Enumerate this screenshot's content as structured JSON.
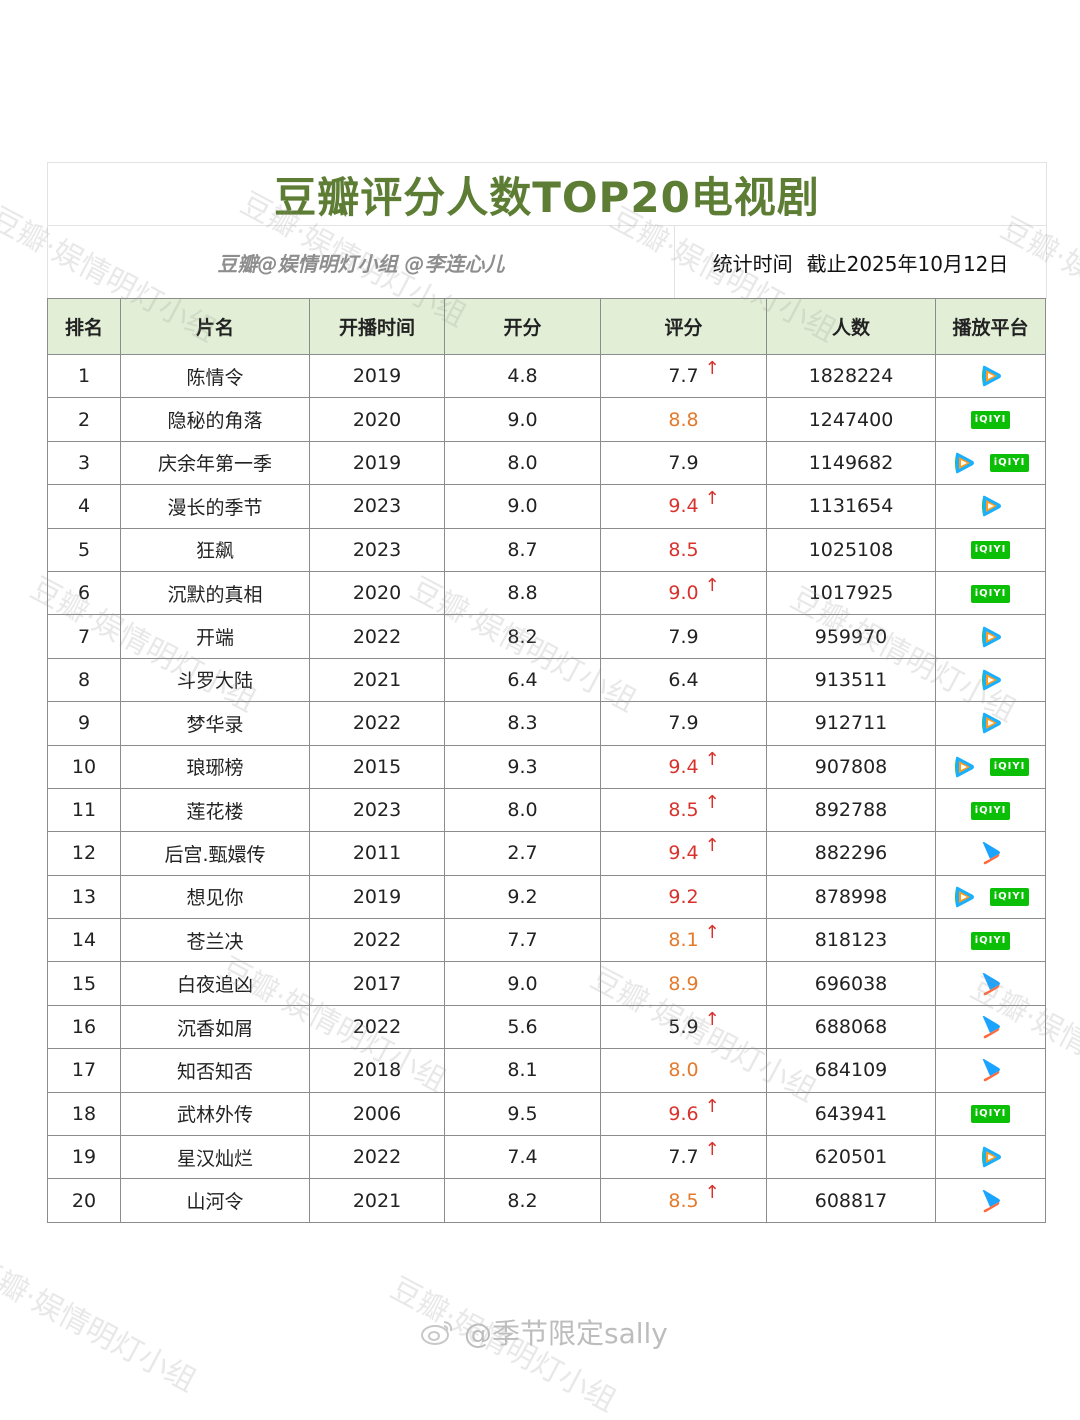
{
  "title": "豆瓣评分人数TOP20电视剧",
  "credit": "豆瓣@娱情明灯小组 @李连心儿",
  "stat_label": "统计时间",
  "stat_date": "截止2025年10月12日",
  "headers": [
    "排名",
    "片名",
    "开播时间",
    "开分",
    "评分",
    "人数",
    "播放平台"
  ],
  "rows": [
    {
      "rank": "1",
      "name": "陈情令",
      "year": "2019",
      "open": "4.8",
      "score": "7.7",
      "color": "black",
      "up": true,
      "count": "1828224",
      "platforms": [
        "tencent"
      ]
    },
    {
      "rank": "2",
      "name": "隐秘的角落",
      "year": "2020",
      "open": "9.0",
      "score": "8.8",
      "color": "orange",
      "up": false,
      "count": "1247400",
      "platforms": [
        "iqiyi"
      ]
    },
    {
      "rank": "3",
      "name": "庆余年第一季",
      "year": "2019",
      "open": "8.0",
      "score": "7.9",
      "color": "black",
      "up": false,
      "count": "1149682",
      "platforms": [
        "tencent",
        "iqiyi"
      ]
    },
    {
      "rank": "4",
      "name": "漫长的季节",
      "year": "2023",
      "open": "9.0",
      "score": "9.4",
      "color": "red",
      "up": true,
      "count": "1131654",
      "platforms": [
        "tencent"
      ]
    },
    {
      "rank": "5",
      "name": "狂飙",
      "year": "2023",
      "open": "8.7",
      "score": "8.5",
      "color": "red",
      "up": false,
      "count": "1025108",
      "platforms": [
        "iqiyi"
      ]
    },
    {
      "rank": "6",
      "name": "沉默的真相",
      "year": "2020",
      "open": "8.8",
      "score": "9.0",
      "color": "red",
      "up": true,
      "count": "1017925",
      "platforms": [
        "iqiyi"
      ]
    },
    {
      "rank": "7",
      "name": "开端",
      "year": "2022",
      "open": "8.2",
      "score": "7.9",
      "color": "black",
      "up": false,
      "count": "959970",
      "platforms": [
        "tencent"
      ]
    },
    {
      "rank": "8",
      "name": "斗罗大陆",
      "year": "2021",
      "open": "6.4",
      "score": "6.4",
      "color": "black",
      "up": false,
      "count": "913511",
      "platforms": [
        "tencent"
      ]
    },
    {
      "rank": "9",
      "name": "梦华录",
      "year": "2022",
      "open": "8.3",
      "score": "7.9",
      "color": "black",
      "up": false,
      "count": "912711",
      "platforms": [
        "tencent"
      ]
    },
    {
      "rank": "10",
      "name": "琅琊榜",
      "year": "2015",
      "open": "9.3",
      "score": "9.4",
      "color": "red",
      "up": true,
      "count": "907808",
      "platforms": [
        "tencent",
        "iqiyi"
      ]
    },
    {
      "rank": "11",
      "name": "莲花楼",
      "year": "2023",
      "open": "8.0",
      "score": "8.5",
      "color": "red",
      "up": true,
      "count": "892788",
      "platforms": [
        "iqiyi"
      ]
    },
    {
      "rank": "12",
      "name": "后宫.甄嬛传",
      "year": "2011",
      "open": "2.7",
      "score": "9.4",
      "color": "red",
      "up": true,
      "count": "882296",
      "platforms": [
        "youku"
      ]
    },
    {
      "rank": "13",
      "name": "想见你",
      "year": "2019",
      "open": "9.2",
      "score": "9.2",
      "color": "red",
      "up": false,
      "count": "878998",
      "platforms": [
        "tencent",
        "iqiyi"
      ]
    },
    {
      "rank": "14",
      "name": "苍兰决",
      "year": "2022",
      "open": "7.7",
      "score": "8.1",
      "color": "orange",
      "up": true,
      "count": "818123",
      "platforms": [
        "iqiyi"
      ]
    },
    {
      "rank": "15",
      "name": "白夜追凶",
      "year": "2017",
      "open": "9.0",
      "score": "8.9",
      "color": "orange",
      "up": false,
      "count": "696038",
      "platforms": [
        "youku"
      ]
    },
    {
      "rank": "16",
      "name": "沉香如屑",
      "year": "2022",
      "open": "5.6",
      "score": "5.9",
      "color": "black",
      "up": true,
      "count": "688068",
      "platforms": [
        "youku"
      ]
    },
    {
      "rank": "17",
      "name": "知否知否",
      "year": "2018",
      "open": "8.1",
      "score": "8.0",
      "color": "orange",
      "up": false,
      "count": "684109",
      "platforms": [
        "youku"
      ]
    },
    {
      "rank": "18",
      "name": "武林外传",
      "year": "2006",
      "open": "9.5",
      "score": "9.6",
      "color": "red",
      "up": true,
      "count": "643941",
      "platforms": [
        "iqiyi"
      ]
    },
    {
      "rank": "19",
      "name": "星汉灿烂",
      "year": "2022",
      "open": "7.4",
      "score": "7.7",
      "color": "black",
      "up": true,
      "count": "620501",
      "platforms": [
        "tencent"
      ]
    },
    {
      "rank": "20",
      "name": "山河令",
      "year": "2021",
      "open": "8.2",
      "score": "8.5",
      "color": "orange",
      "up": true,
      "count": "608817",
      "platforms": [
        "youku"
      ]
    }
  ],
  "iqiyi_label": "iQIYI",
  "arrow_glyph": "↑",
  "watermark_text": "豆瓣·娱情明灯小组",
  "footer_text": "@季节限定sally",
  "colors": {
    "title": "#5c7d33",
    "header_bg": "#e2efd6",
    "red": "#d8322d",
    "orange": "#e47a2d",
    "iqiyi": "#0bbe06"
  }
}
